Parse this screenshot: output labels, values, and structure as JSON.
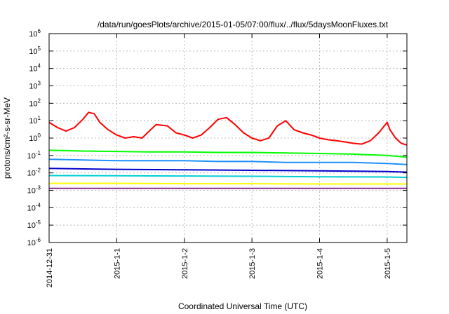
{
  "chart_data": {
    "type": "line",
    "title": "/data/run/goesPlots/archive/2015-01-05/07:00/flux/../flux/5daysMoonFluxes.txt",
    "xlabel": "Coordinated Universal Time (UTC)",
    "ylabel": "protons/cm²-s-sr-MeV",
    "y_scale": "log",
    "ylim": [
      1e-06,
      1000000
    ],
    "y_ticks": [
      {
        "value": 1e-06,
        "base": "10",
        "exp": "-6"
      },
      {
        "value": 1e-05,
        "base": "10",
        "exp": "-5"
      },
      {
        "value": 0.0001,
        "base": "10",
        "exp": "-4"
      },
      {
        "value": 0.001,
        "base": "10",
        "exp": "-3"
      },
      {
        "value": 0.01,
        "base": "10",
        "exp": "-2"
      },
      {
        "value": 0.1,
        "base": "10",
        "exp": "-1"
      },
      {
        "value": 1,
        "base": "10",
        "exp": "0"
      },
      {
        "value": 10,
        "base": "10",
        "exp": "1"
      },
      {
        "value": 100,
        "base": "10",
        "exp": "2"
      },
      {
        "value": 1000,
        "base": "10",
        "exp": "3"
      },
      {
        "value": 10000,
        "base": "10",
        "exp": "4"
      },
      {
        "value": 100000,
        "base": "10",
        "exp": "5"
      },
      {
        "value": 1000000,
        "base": "10",
        "exp": "6"
      }
    ],
    "x_ticks": [
      "2014-12-31",
      "2015-1-1",
      "2015-1-2",
      "2015-1-3",
      "2015-1-4",
      "2015-1-5"
    ],
    "x_range": [
      "2014-12-31 00:00",
      "2015-01-05 07:00"
    ],
    "grid": true,
    "series": [
      {
        "color": "#ff0000",
        "x": [
          "2014-12-31 00:00",
          "2014-12-31 03:00",
          "2014-12-31 06:00",
          "2014-12-31 09:00",
          "2014-12-31 12:00",
          "2014-12-31 14:00",
          "2014-12-31 16:00",
          "2014-12-31 18:00",
          "2014-12-31 21:00",
          "2015-01-01 00:00",
          "2015-01-01 03:00",
          "2015-01-01 06:00",
          "2015-01-01 09:00",
          "2015-01-01 12:00",
          "2015-01-01 14:00",
          "2015-01-01 18:00",
          "2015-01-01 21:00",
          "2015-01-02 00:00",
          "2015-01-02 03:00",
          "2015-01-02 06:00",
          "2015-01-02 09:00",
          "2015-01-02 12:00",
          "2015-01-02 15:00",
          "2015-01-02 18:00",
          "2015-01-02 21:00",
          "2015-01-03 00:00",
          "2015-01-03 03:00",
          "2015-01-03 06:00",
          "2015-01-03 09:00",
          "2015-01-03 12:00",
          "2015-01-03 15:00",
          "2015-01-03 18:00",
          "2015-01-03 21:00",
          "2015-01-04 00:00",
          "2015-01-04 03:00",
          "2015-01-04 06:00",
          "2015-01-04 09:00",
          "2015-01-04 12:00",
          "2015-01-04 15:00",
          "2015-01-04 18:00",
          "2015-01-04 21:00",
          "2015-01-05 00:00",
          "2015-01-05 01:00",
          "2015-01-05 03:00",
          "2015-01-05 05:00",
          "2015-01-05 07:00"
        ],
        "values": [
          8,
          4,
          2.5,
          4,
          12,
          30,
          25,
          8,
          3,
          1.5,
          1,
          1.2,
          1,
          3,
          6,
          5,
          2,
          1.5,
          1,
          1.5,
          4,
          12,
          15,
          6,
          2,
          1,
          0.7,
          1,
          5,
          10,
          3,
          2,
          1.5,
          1,
          0.8,
          0.7,
          0.6,
          0.5,
          0.45,
          0.7,
          2,
          8,
          3,
          1,
          0.5,
          0.4
        ]
      },
      {
        "color": "#00ff00",
        "x": [
          "2014-12-31 00:00",
          "2014-12-31 12:00",
          "2015-01-01 00:00",
          "2015-01-01 12:00",
          "2015-01-02 00:00",
          "2015-01-02 12:00",
          "2015-01-03 00:00",
          "2015-01-03 12:00",
          "2015-01-04 00:00",
          "2015-01-04 12:00",
          "2015-01-05 00:00",
          "2015-01-05 07:00"
        ],
        "values": [
          0.2,
          0.18,
          0.17,
          0.16,
          0.16,
          0.15,
          0.15,
          0.14,
          0.13,
          0.12,
          0.1,
          0.08
        ]
      },
      {
        "color": "#1e90ff",
        "x": [
          "2014-12-31 00:00",
          "2014-12-31 12:00",
          "2015-01-01 00:00",
          "2015-01-01 12:00",
          "2015-01-02 00:00",
          "2015-01-02 12:00",
          "2015-01-03 00:00",
          "2015-01-03 12:00",
          "2015-01-04 00:00",
          "2015-01-04 12:00",
          "2015-01-05 00:00",
          "2015-01-05 07:00"
        ],
        "values": [
          0.06,
          0.055,
          0.05,
          0.05,
          0.05,
          0.045,
          0.045,
          0.04,
          0.04,
          0.04,
          0.035,
          0.03
        ]
      },
      {
        "color": "#00ced1",
        "x": [
          "2014-12-31 00:00",
          "2015-01-01 00:00",
          "2015-01-02 00:00",
          "2015-01-03 00:00",
          "2015-01-04 00:00",
          "2015-01-05 00:00",
          "2015-01-05 07:00"
        ],
        "values": [
          0.007,
          0.0068,
          0.0066,
          0.0064,
          0.006,
          0.0058,
          0.0055
        ]
      },
      {
        "color": "#0000cd",
        "x": [
          "2014-12-31 00:00",
          "2015-01-01 00:00",
          "2015-01-02 00:00",
          "2015-01-03 00:00",
          "2015-01-04 00:00",
          "2015-01-05 00:00",
          "2015-01-05 07:00"
        ],
        "values": [
          0.018,
          0.016,
          0.015,
          0.014,
          0.013,
          0.012,
          0.011
        ]
      },
      {
        "color": "#ffff00",
        "x": [
          "2014-12-31 00:00",
          "2015-01-01 00:00",
          "2015-01-02 00:00",
          "2015-01-03 00:00",
          "2015-01-04 00:00",
          "2015-01-05 00:00",
          "2015-01-05 07:00"
        ],
        "values": [
          0.0025,
          0.0025,
          0.0024,
          0.0024,
          0.0023,
          0.0023,
          0.0023
        ]
      },
      {
        "color": "#8b2d8b",
        "x": [
          "2014-12-31 00:00",
          "2015-01-01 00:00",
          "2015-01-02 00:00",
          "2015-01-03 00:00",
          "2015-01-04 00:00",
          "2015-01-05 00:00",
          "2015-01-05 07:00"
        ],
        "values": [
          0.0013,
          0.0013,
          0.0013,
          0.0013,
          0.0013,
          0.0013,
          0.0013
        ]
      }
    ]
  }
}
